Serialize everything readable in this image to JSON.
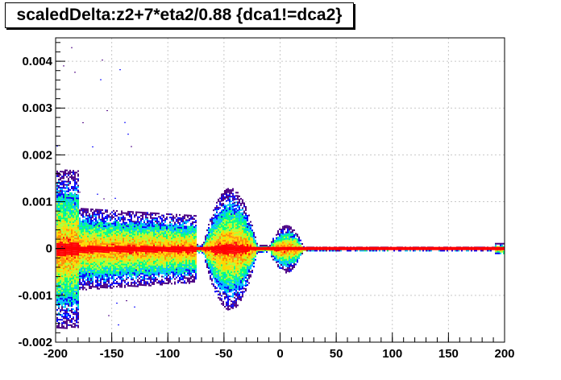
{
  "chart_data": {
    "type": "heatmap",
    "title": "scaledDelta:z2+7*eta2/0.88 {dca1!=dca2}",
    "xlabel": "",
    "ylabel": "",
    "xlim": [
      -200,
      200
    ],
    "ylim": [
      -0.002,
      0.0045
    ],
    "grid": true,
    "x_ticks": [
      -200,
      -150,
      -100,
      -50,
      0,
      50,
      100,
      150,
      200
    ],
    "x_tick_labels": [
      "-200",
      "-150",
      "-100",
      "-50",
      "0",
      "50",
      "100",
      "150",
      "200"
    ],
    "y_ticks": [
      -0.002,
      -0.001,
      0,
      0.001,
      0.002,
      0.003,
      0.004
    ],
    "y_tick_labels": [
      "-0.002",
      "-0.001",
      "0",
      "0.001",
      "0.002",
      "0.003",
      "0.004"
    ],
    "colors": {
      "palette": [
        "#4b0082",
        "#0000ff",
        "#00bfff",
        "#00ff80",
        "#adff2f",
        "#ffd700",
        "#ff8c00",
        "#ff0000"
      ],
      "core": "#ff0000",
      "grid": "#c8c8c8"
    },
    "bands": [
      {
        "x": [
          -200,
          -75
        ],
        "half_width_y": 0.0009,
        "note_level": "wide spread, lowest counts at edges"
      },
      {
        "x": [
          -70,
          -20
        ],
        "half_width_y": 0.0013,
        "note_level": "central lobe peak near x=-45"
      },
      {
        "x": [
          -20,
          20
        ],
        "half_width_y": 0.0005,
        "note_level": "small lobe peak near x=5"
      },
      {
        "x": [
          20,
          200
        ],
        "half_width_y": 5e-05,
        "note_level": "narrow core"
      }
    ]
  }
}
